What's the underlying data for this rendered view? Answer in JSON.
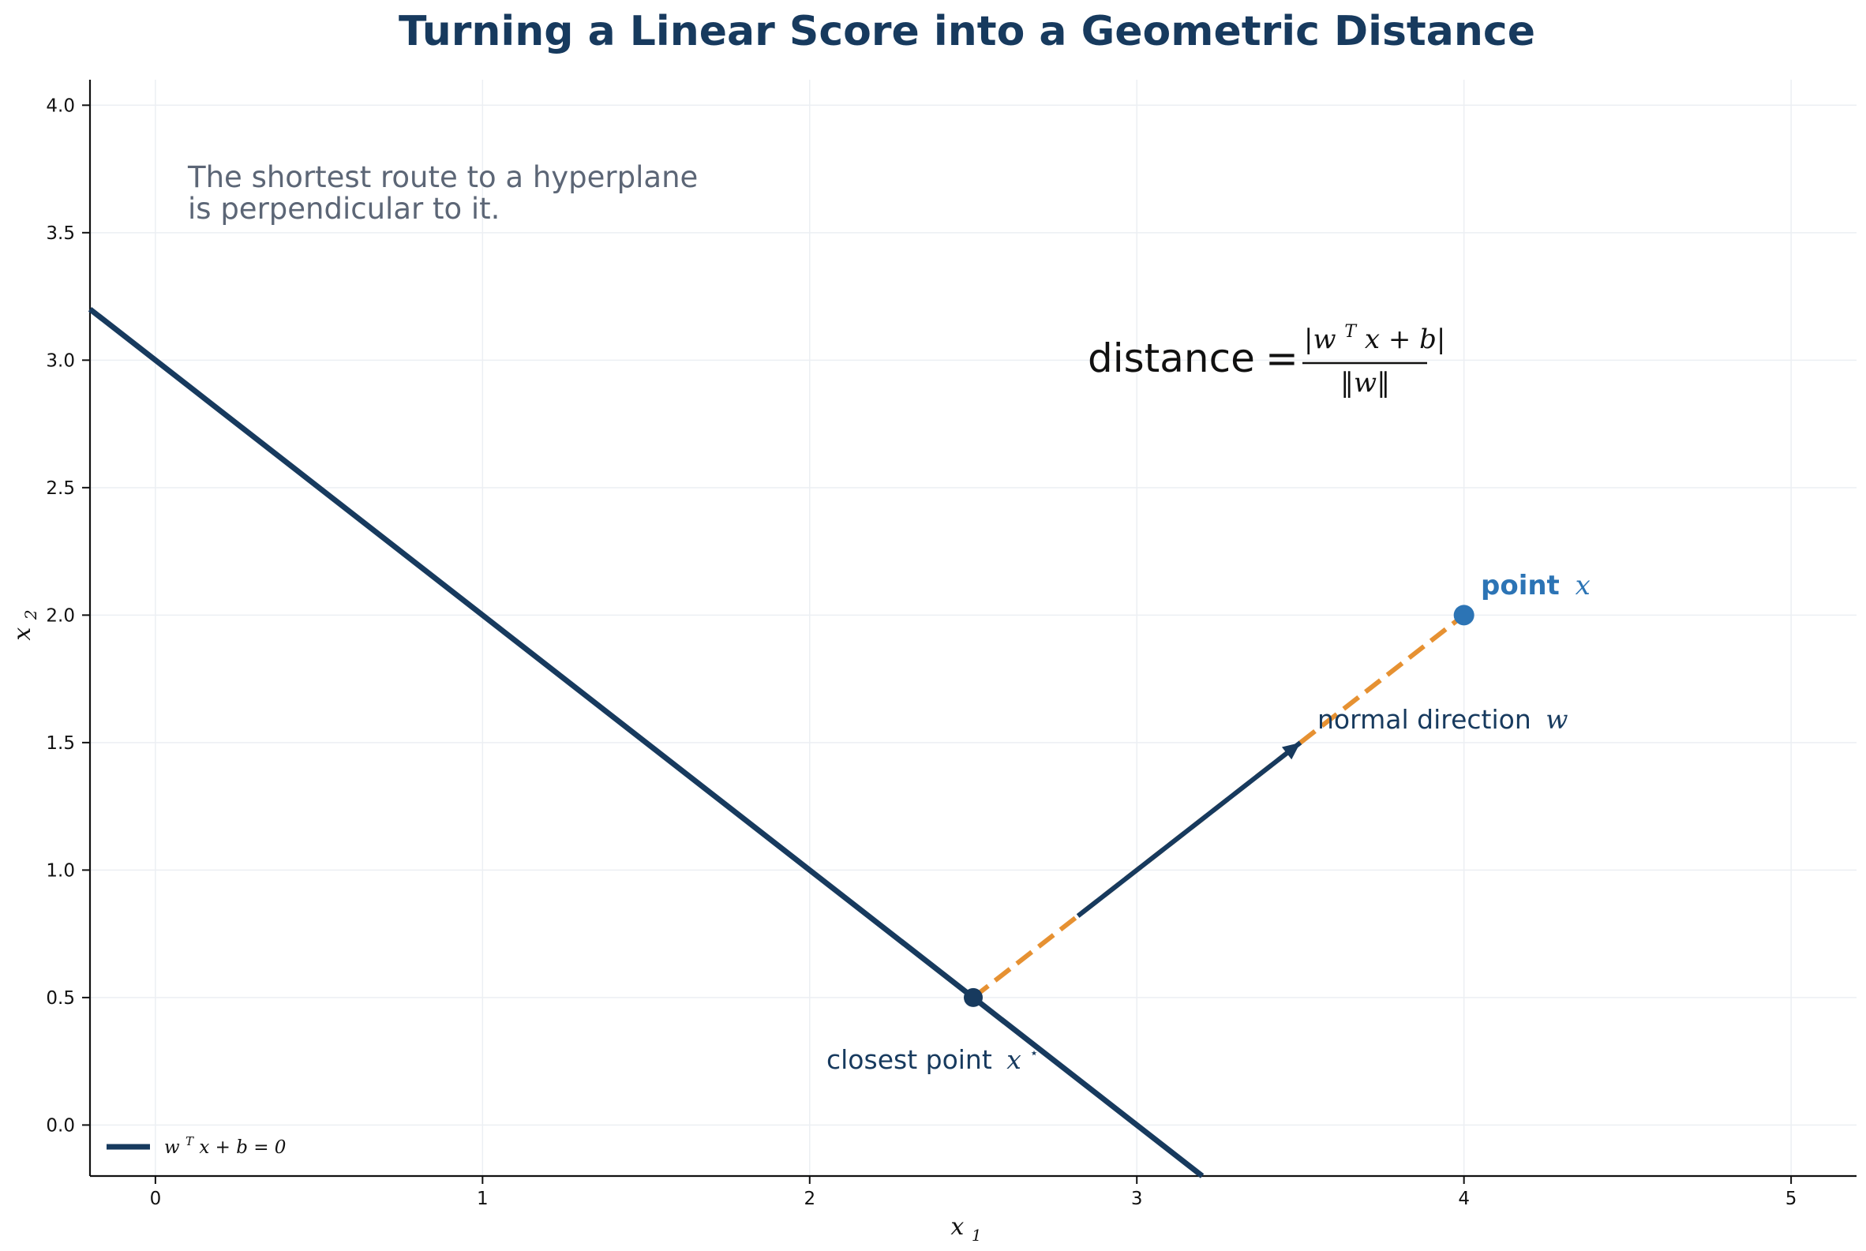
{
  "chart_data": {
    "type": "line",
    "title": "Turning a Linear Score into a Geometric Distance",
    "xlabel": {
      "base": "x",
      "subscript": "1"
    },
    "ylabel": {
      "base": "x",
      "subscript": "2"
    },
    "xlim": [
      -0.2,
      5.2
    ],
    "ylim": [
      -0.2,
      4.1
    ],
    "xticks": [
      0,
      1,
      2,
      3,
      4,
      5
    ],
    "yticks": [
      0.0,
      0.5,
      1.0,
      1.5,
      2.0,
      2.5,
      3.0,
      3.5,
      4.0
    ],
    "x_tick_labels": [
      "0",
      "1",
      "2",
      "3",
      "4",
      "5"
    ],
    "y_tick_labels": [
      "0.0",
      "0.5",
      "1.0",
      "1.5",
      "2.0",
      "2.5",
      "3.0",
      "3.5",
      "4.0"
    ],
    "grid": true,
    "legend_position": "lower-left",
    "colors": {
      "title": "#173a5e",
      "hyperplane": "#173a5e",
      "point": "#2c74b5",
      "distance_segment": "#e69132",
      "closest_point": "#173a5e",
      "note": "#5c6676",
      "formula": "#111111"
    },
    "series": [
      {
        "name": "w^T x + b = 0",
        "type": "line",
        "x": [
          -0.2,
          3.2
        ],
        "y": [
          3.2,
          -0.2
        ]
      }
    ],
    "points": [
      {
        "key": "point_x",
        "x": 4.0,
        "y": 2.0
      },
      {
        "key": "closest_point",
        "x": 2.5,
        "y": 0.5
      }
    ],
    "distance_segment": {
      "x": [
        2.5,
        4.0
      ],
      "y": [
        0.5,
        2.0
      ],
      "style": "dashed"
    },
    "normal_arrow": {
      "from": [
        2.82,
        0.82
      ],
      "to": [
        3.5,
        1.5
      ]
    },
    "annotations": {
      "note_line_1": "The shortest route to a hyperplane",
      "note_line_2": "is perpendicular to it.",
      "point_label_word": "point",
      "point_label_symbol": "x",
      "closest_label_word": "closest point",
      "closest_label_symbol": "x",
      "closest_label_superscript": "⋆",
      "normal_label_word": "normal direction",
      "normal_label_symbol": "w",
      "formula_lhs": "distance",
      "formula_equals": "=",
      "formula_numerator": "|w",
      "formula_numerator_sup": "T",
      "formula_numerator_tail": "x + b|",
      "formula_denominator": "‖w‖"
    },
    "legend": {
      "text_start": "w",
      "text_sup": "T",
      "text_end": "x + b = 0"
    }
  }
}
